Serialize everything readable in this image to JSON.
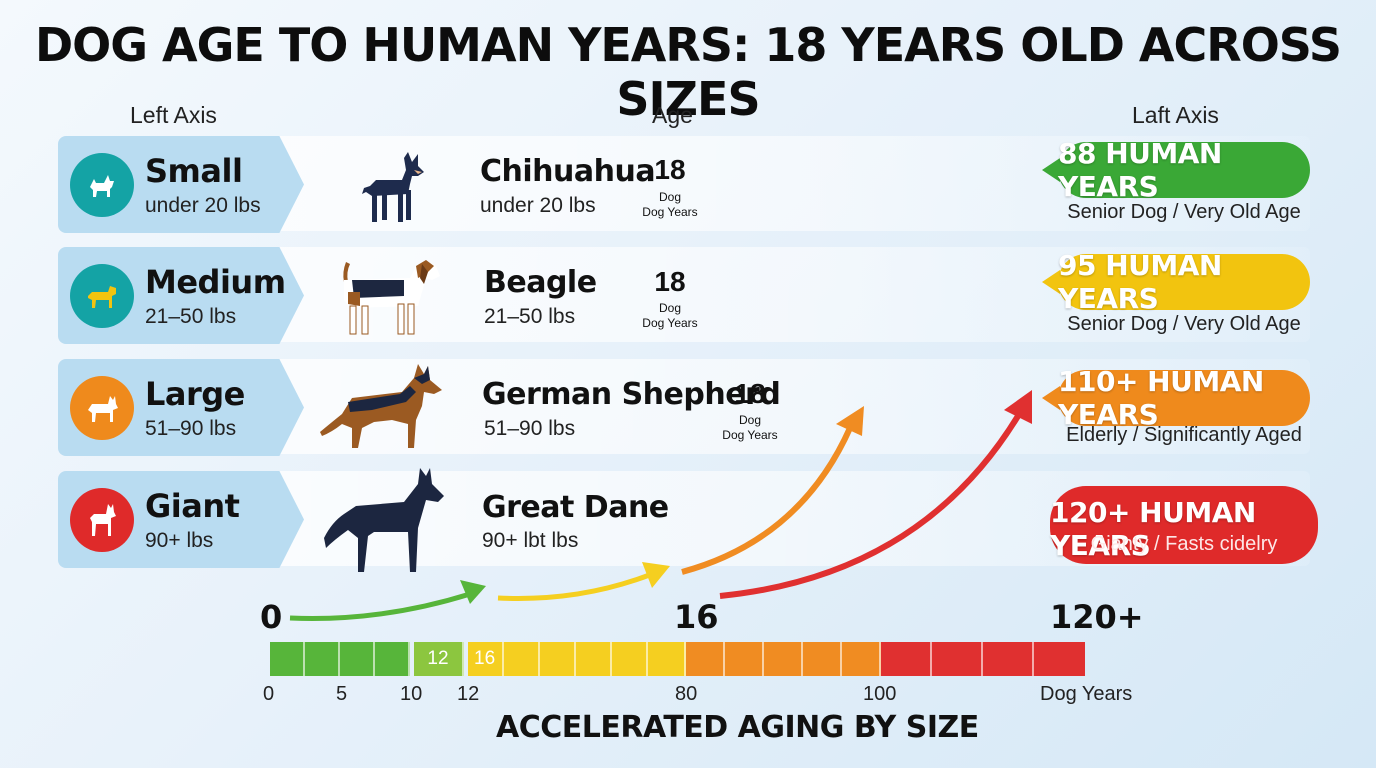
{
  "title": "DOG AGE TO HUMAN YEARS: 18 YEARS OLD ACROSS SIZES",
  "headers": {
    "left": "Left Axis",
    "middle": "Age",
    "right": "Laft Axis"
  },
  "rows": [
    {
      "size": "Small",
      "size_weight": "under 20 lbs",
      "breed": "Chihuahua",
      "breed_weight": "under 20 lbs",
      "age": "18",
      "age_line1": "Dog",
      "age_line2": "Dog Years",
      "human_years": "88 HUMAN YEARS",
      "status": "Senior Dog / Very Old Age",
      "color": "#3aa836",
      "circle_color": "#14a3a5"
    },
    {
      "size": "Medium",
      "size_weight": "21–50 lbs",
      "breed": "Beagle",
      "breed_weight": "21–50 lbs",
      "age": "18",
      "age_line1": "Dog",
      "age_line2": "Dog Years",
      "human_years": "95 HUMAN YEARS",
      "status": "Senior Dog / Very Old Age",
      "color": "#f2c40f",
      "circle_color": "#14a3a5"
    },
    {
      "size": "Large",
      "size_weight": "51–90 lbs",
      "breed": "German Shepherd",
      "breed_weight": "51–90 lbs",
      "age": "18",
      "age_line1": "Dog",
      "age_line2": "Dog Years",
      "human_years": "110+ HUMAN YEARS",
      "status": "Elderly / Significantly Aged",
      "color": "#ef8a1c",
      "circle_color": "#ef8a1c"
    },
    {
      "size": "Giant",
      "size_weight": "90+ lbs",
      "breed": "Great Dane",
      "breed_weight": "90+ lbt lbs",
      "human_years": "120+ HUMAN YEARS",
      "status": "Gianty / Fasts cidelry",
      "color": "#df2a2a",
      "circle_color": "#df2a2a"
    }
  ],
  "scale": {
    "big_labels": [
      "0",
      "16",
      "120+"
    ],
    "segment_labels": [
      "12",
      "16"
    ],
    "ticks": [
      "0",
      "5",
      "10",
      "12",
      "80",
      "100",
      "Dog Years"
    ],
    "colors": {
      "green": "#57b53a",
      "light_green": "#8cc63f",
      "yellow": "#f5cf20",
      "orange": "#f08c22",
      "red": "#e03030"
    }
  },
  "footer": "ACCELERATED AGING BY SIZE"
}
